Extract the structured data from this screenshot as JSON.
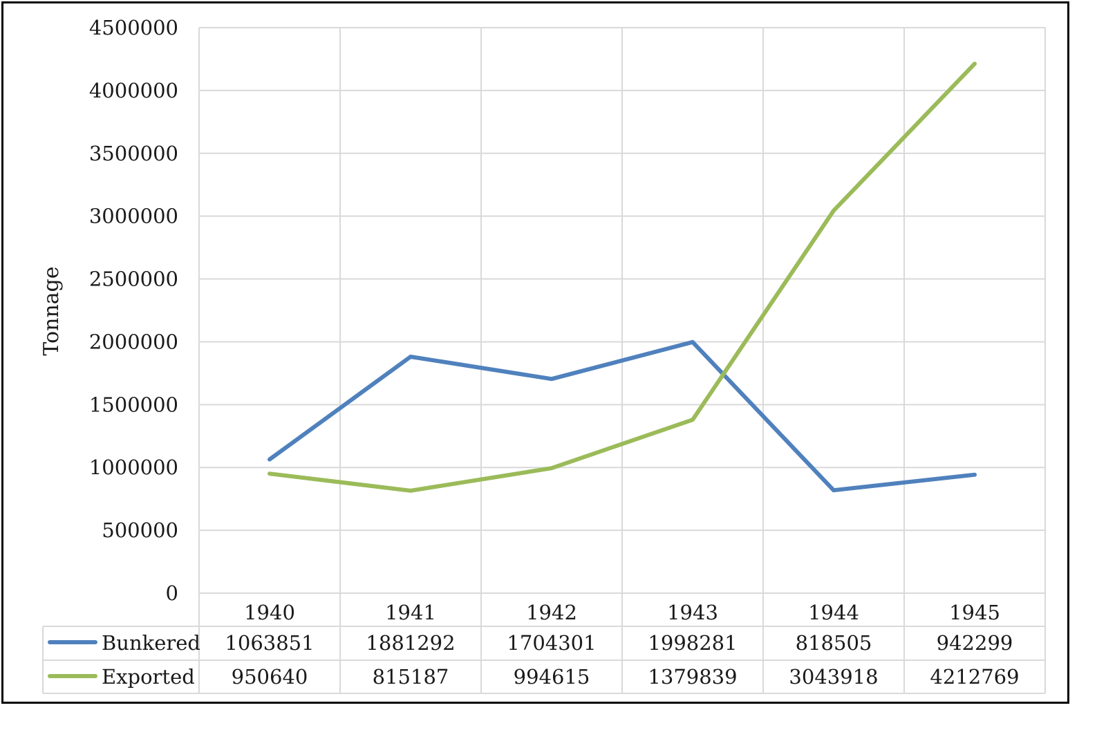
{
  "chart_data": {
    "type": "line",
    "title": "",
    "xlabel": "",
    "ylabel": "Tonnage",
    "categories": [
      "1940",
      "1941",
      "1942",
      "1943",
      "1944",
      "1945"
    ],
    "ylim": [
      0,
      4500000
    ],
    "yticks": [
      "4500000",
      "4000000",
      "3500000",
      "3000000",
      "2500000",
      "2000000",
      "1500000",
      "1000000",
      "500000",
      "0"
    ],
    "grid": true,
    "legend": "data table below plot",
    "series": [
      {
        "name": "Bunkered",
        "color": "#4F81BD",
        "values": [
          1063851,
          1881292,
          1704301,
          1998281,
          818505,
          942299
        ],
        "labels": [
          "1063851",
          "1881292",
          "1704301",
          "1998281",
          "818505",
          "942299"
        ]
      },
      {
        "name": "Exported",
        "color": "#9BBB59",
        "values": [
          950640,
          815187,
          994615,
          1379839,
          3043918,
          4212769
        ],
        "labels": [
          "950640",
          "815187",
          "994615",
          "1379839",
          "3043918",
          "4212769"
        ]
      }
    ]
  }
}
